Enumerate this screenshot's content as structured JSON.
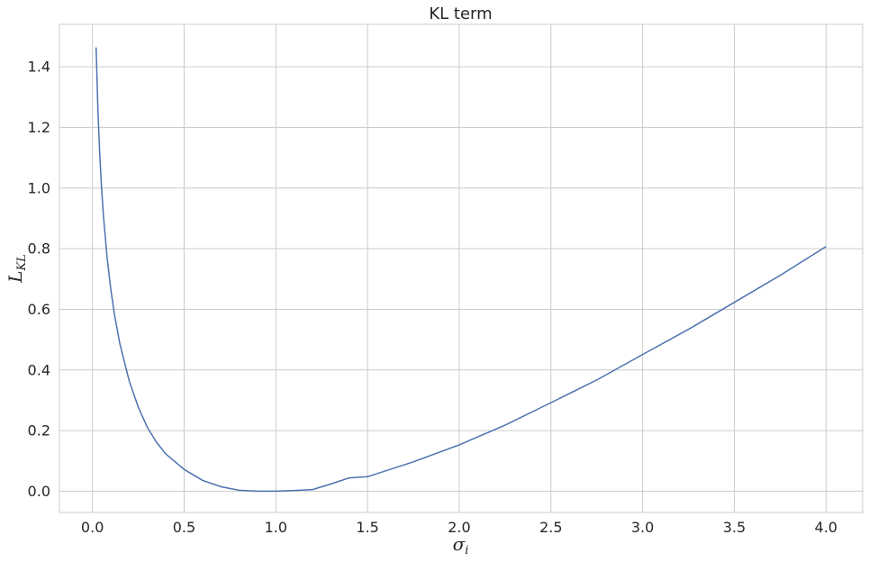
{
  "chart_data": {
    "type": "line",
    "title": "KL term",
    "xlabel": {
      "main": "σ",
      "sub": "i"
    },
    "ylabel": {
      "main": "L",
      "sub": "KL"
    },
    "xlim": [
      -0.18,
      4.2
    ],
    "ylim": [
      -0.07,
      1.54
    ],
    "xticks": [
      0.0,
      0.5,
      1.0,
      1.5,
      2.0,
      2.5,
      3.0,
      3.5,
      4.0
    ],
    "xtick_labels": [
      "0.0",
      "0.5",
      "1.0",
      "1.5",
      "2.0",
      "2.5",
      "3.0",
      "3.5",
      "4.0"
    ],
    "yticks": [
      0.0,
      0.2,
      0.4,
      0.6,
      0.8,
      1.0,
      1.2,
      1.4
    ],
    "ytick_labels": [
      "0.0",
      "0.2",
      "0.4",
      "0.6",
      "0.8",
      "1.0",
      "1.2",
      "1.4"
    ],
    "grid": true,
    "colors": {
      "line": "#4c72b0",
      "grid": "#cccccc",
      "frame": "#cccccc",
      "text": "#262626"
    },
    "series": [
      {
        "x": [
          0.02,
          0.03,
          0.04,
          0.05,
          0.06,
          0.08,
          0.1,
          0.12,
          0.15,
          0.2,
          0.25,
          0.3,
          0.35,
          0.4,
          0.5,
          0.6,
          0.7,
          0.8,
          0.9,
          1.0,
          1.1,
          1.2,
          1.3,
          1.4,
          1.5,
          1.75,
          2.0,
          2.25,
          2.5,
          2.75,
          3.0,
          3.25,
          3.5,
          3.75,
          4.0
        ],
        "y": [
          1.464,
          1.254,
          1.109,
          0.998,
          0.908,
          0.77,
          0.666,
          0.583,
          0.485,
          0.365,
          0.277,
          0.21,
          0.161,
          0.123,
          0.072,
          0.036,
          0.015,
          0.003,
          0.0003,
          0.0,
          0.0023,
          0.0054,
          0.024,
          0.044,
          0.048,
          0.097,
          0.153,
          0.218,
          0.292,
          0.367,
          0.451,
          0.534,
          0.623,
          0.712,
          0.807
        ]
      }
    ]
  }
}
